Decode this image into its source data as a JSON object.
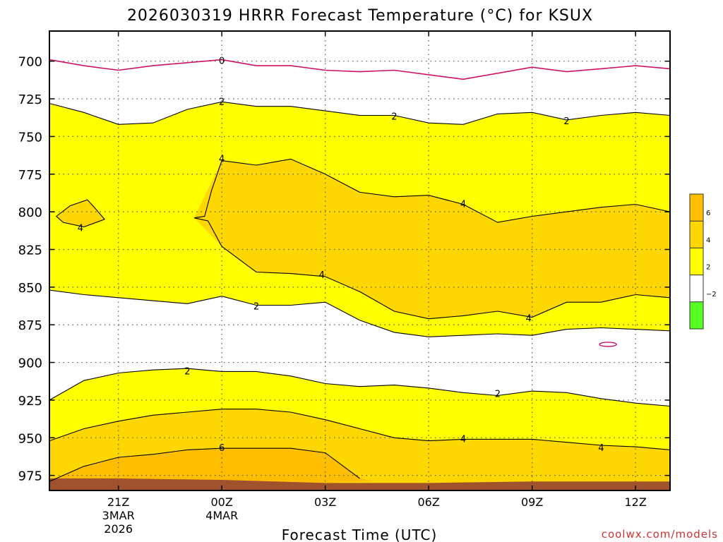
{
  "chart_data": {
    "type": "area",
    "title": "2026030319 HRRR Forecast Temperature (°C) for KSUX",
    "xlabel": "Forecast Time (UTC)",
    "ylabel": "",
    "watermark": "coolwx.com/models",
    "x_ticks": [
      "21Z",
      "00Z",
      "03Z",
      "06Z",
      "09Z",
      "12Z"
    ],
    "x_tick_hours": [
      21,
      24,
      27,
      30,
      33,
      36
    ],
    "date_labels": [
      {
        "hour": 21,
        "lines": [
          "3MAR",
          "2026"
        ]
      },
      {
        "hour": 24,
        "lines": [
          "4MAR"
        ]
      }
    ],
    "xlim": [
      19,
      37
    ],
    "y_ticks": [
      700,
      725,
      750,
      775,
      800,
      825,
      850,
      875,
      900,
      925,
      950,
      975
    ],
    "ylim": [
      680,
      985
    ],
    "y_axis_inverted": true,
    "grid": true,
    "colorbar": {
      "levels": [
        -2,
        2,
        4,
        6
      ],
      "bands": [
        {
          "from": -4,
          "to": -2,
          "color": "#55ff22"
        },
        {
          "from": -2,
          "to": 2,
          "color": "#ffffff"
        },
        {
          "from": 2,
          "to": 4,
          "color": "#ffff00"
        },
        {
          "from": 4,
          "to": 6,
          "color": "#ffd700"
        },
        {
          "from": 6,
          "to": 8,
          "color": "#ffbf00"
        }
      ]
    },
    "ground_color": "#a0522d",
    "contour_color": "#000000",
    "freezing_color": "#cc1166",
    "hours": [
      19,
      20,
      21,
      22,
      23,
      24,
      25,
      26,
      27,
      28,
      29,
      30,
      31,
      32,
      33,
      34,
      35,
      36,
      37
    ],
    "contours": [
      {
        "label": "0",
        "value": 0,
        "label_hour": 24,
        "p": [
          699,
          703,
          706,
          703,
          701,
          699,
          703,
          703,
          706,
          707,
          706,
          709,
          712,
          708,
          704,
          707,
          705,
          703,
          705
        ]
      },
      {
        "label": "2",
        "value": 2,
        "label_hour": 24,
        "p": [
          728,
          734,
          742,
          741,
          732,
          727,
          730,
          730,
          733,
          736,
          736,
          741,
          742,
          735,
          734,
          739,
          736,
          734,
          736
        ]
      },
      {
        "label": "4",
        "value": 4,
        "label_hour": 24,
        "p": [
          null,
          null,
          null,
          null,
          null,
          766,
          769,
          765,
          775,
          787,
          790,
          789,
          795,
          807,
          803,
          800,
          797,
          795,
          800
        ]
      },
      {
        "label": "4",
        "value": 4,
        "label_hour": 27,
        "p": [
          null,
          null,
          null,
          null,
          null,
          823,
          840,
          841,
          843,
          853,
          866,
          871,
          869,
          866,
          870,
          860,
          860,
          855,
          857
        ]
      },
      {
        "label": "2",
        "value": 2,
        "label_hour": 25,
        "p": [
          852,
          855,
          857,
          859,
          861,
          856,
          862,
          862,
          860,
          872,
          880,
          883,
          882,
          881,
          882,
          878,
          877,
          878,
          879
        ]
      },
      {
        "label": "2",
        "value": 2,
        "label_hour": 23,
        "p": [
          925,
          912,
          907,
          905,
          904,
          906,
          906,
          909,
          914,
          916,
          915,
          917,
          920,
          922,
          919,
          920,
          924,
          927,
          929
        ]
      },
      {
        "label": "4",
        "value": 4,
        "label_hour": 30,
        "p": [
          952,
          944,
          939,
          935,
          933,
          931,
          931,
          933,
          938,
          944,
          950,
          952,
          951,
          951,
          951,
          953,
          955,
          956,
          958
        ]
      },
      {
        "label": "6",
        "value": 6,
        "label_hour": 24,
        "p": [
          979,
          969,
          963,
          961,
          958,
          957,
          957,
          957,
          960,
          977,
          null,
          null,
          null,
          null,
          null,
          null,
          null,
          null,
          null
        ]
      }
    ],
    "labels": [
      {
        "text": "0",
        "hour": 24,
        "p": 700
      },
      {
        "text": "2",
        "hour": 24,
        "p": 727
      },
      {
        "text": "2",
        "hour": 29,
        "p": 737
      },
      {
        "text": "2",
        "hour": 34,
        "p": 740
      },
      {
        "text": "4",
        "hour": 24,
        "p": 765
      },
      {
        "text": "4",
        "hour": 19.9,
        "p": 811
      },
      {
        "text": "4",
        "hour": 31,
        "p": 795
      },
      {
        "text": "4",
        "hour": 26.9,
        "p": 842
      },
      {
        "text": "4",
        "hour": 32.9,
        "p": 871
      },
      {
        "text": "2",
        "hour": 25,
        "p": 863
      },
      {
        "text": "2",
        "hour": 23,
        "p": 906
      },
      {
        "text": "2",
        "hour": 32,
        "p": 921
      },
      {
        "text": "4",
        "hour": 31,
        "p": 951
      },
      {
        "text": "4",
        "hour": 35,
        "p": 957
      },
      {
        "text": "6",
        "hour": 24,
        "p": 957
      }
    ]
  }
}
